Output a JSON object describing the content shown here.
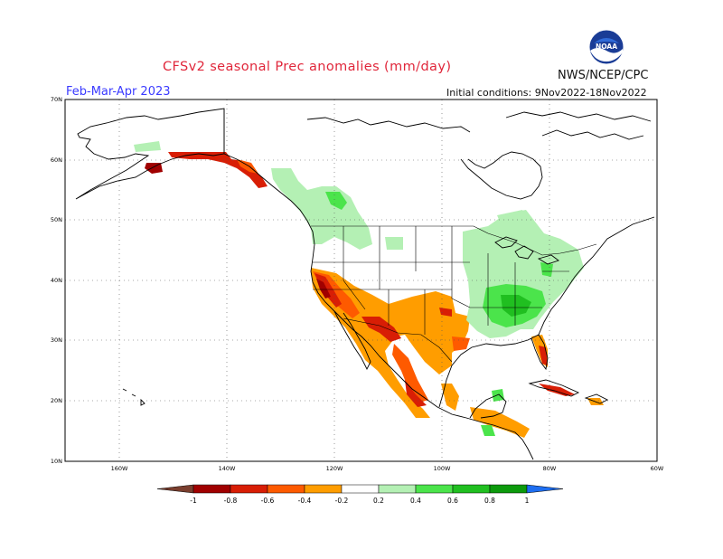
{
  "title": "CFSv2 seasonal Prec anomalies (mm/day)",
  "season": "Feb-Mar-Apr 2023",
  "initial_conditions": "Initial conditions: 9Nov2022-18Nov2022",
  "agency": "NWS/NCEP/CPC",
  "logo_text": "NOAA",
  "map": {
    "lat_labels": [
      "70N",
      "60N",
      "50N",
      "40N",
      "30N",
      "20N",
      "10N"
    ],
    "lon_labels": [
      "160W",
      "140W",
      "120W",
      "100W",
      "80W",
      "60W"
    ],
    "grid": "dotted"
  },
  "legend": {
    "labels": [
      "-1",
      "-0.8",
      "-0.6",
      "-0.4",
      "-0.2",
      "0.2",
      "0.4",
      "0.6",
      "0.8",
      "1"
    ],
    "colors": [
      "#7a3e2e",
      "#a00000",
      "#d81e05",
      "#fe5a00",
      "#ff9d00",
      "#ffffff",
      "#b4f0b4",
      "#4be44b",
      "#20bf20",
      "#0c9a0c",
      "#1e6ef0"
    ]
  },
  "anomaly_regions": {
    "dry": [
      "California coast",
      "Southwest US",
      "Southern Plains",
      "Texas",
      "Western Mexico",
      "Florida peninsula",
      "Southern Alaska coast",
      "Greater Antilles"
    ],
    "wet": [
      "Ohio Valley",
      "Tennessee Valley",
      "Great Lakes",
      "Northern Plains",
      "Pacific Northwest",
      "British Columbia",
      "Central America"
    ]
  }
}
